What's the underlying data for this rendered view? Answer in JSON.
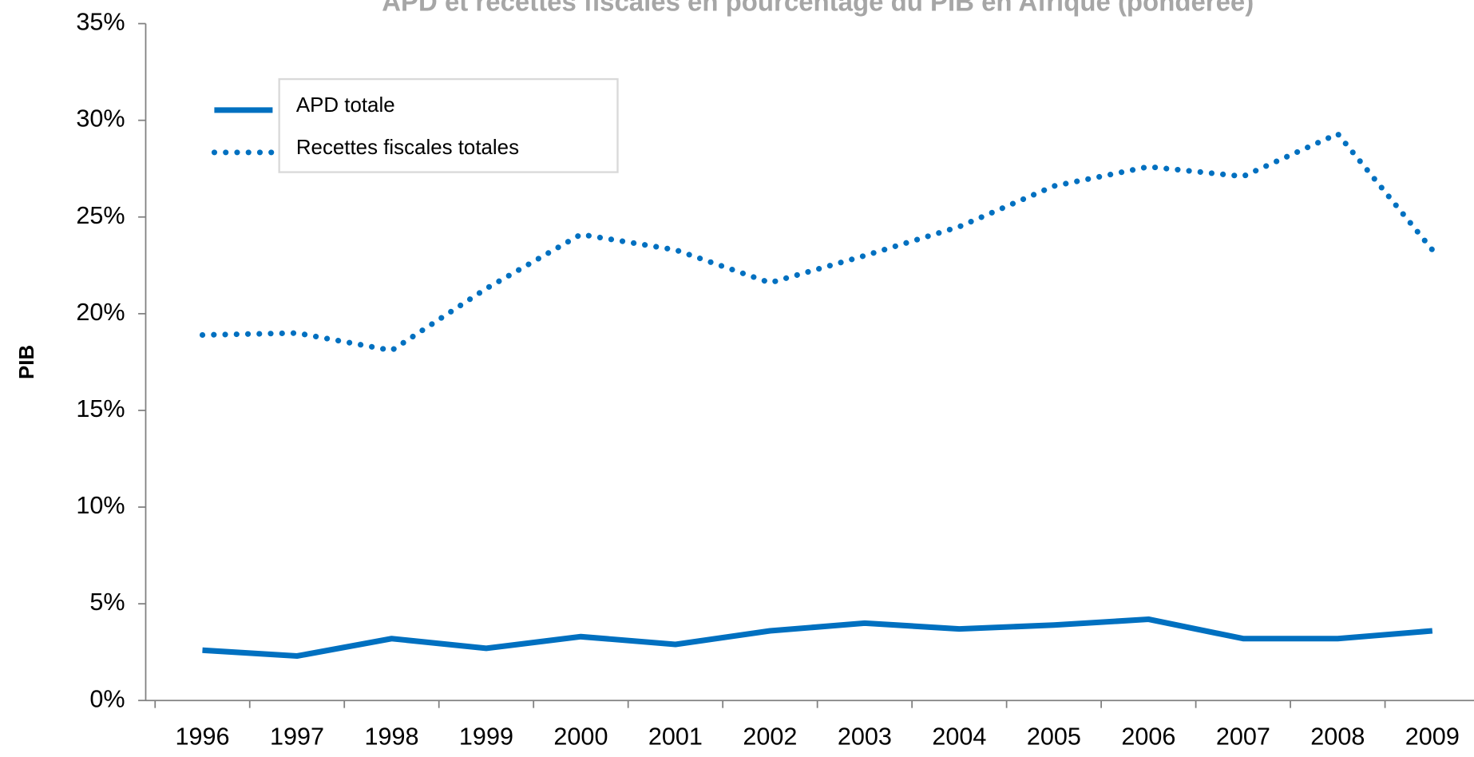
{
  "chart_data": {
    "type": "line",
    "title": "APD et recettes fiscales en pourcentage du PIB en Afrique (pondérée)",
    "y_label": "PIB",
    "categories": [
      "1996",
      "1997",
      "1998",
      "1999",
      "2000",
      "2001",
      "2002",
      "2003",
      "2004",
      "2005",
      "2006",
      "2007",
      "2008",
      "2009"
    ],
    "series": [
      {
        "name": "APD totale",
        "color": "#0070c0",
        "style": "solid",
        "values": [
          2.6,
          2.3,
          3.2,
          2.7,
          3.3,
          2.9,
          3.6,
          4.0,
          3.7,
          3.9,
          4.2,
          3.2,
          3.2,
          3.6
        ]
      },
      {
        "name": "Recettes fiscales totales",
        "color": "#0070c0",
        "style": "dotted",
        "values": [
          18.9,
          19.0,
          18.1,
          21.3,
          24.1,
          23.3,
          21.6,
          23.0,
          24.5,
          26.6,
          27.6,
          27.1,
          29.3,
          23.3
        ]
      }
    ],
    "ylim": [
      0,
      35
    ],
    "yticks": [
      {
        "value": 0,
        "label": "0%"
      },
      {
        "value": 5,
        "label": "5%"
      },
      {
        "value": 10,
        "label": "10%"
      },
      {
        "value": 15,
        "label": "15%"
      },
      {
        "value": 20,
        "label": "20%"
      },
      {
        "value": 25,
        "label": "25%"
      },
      {
        "value": 30,
        "label": "30%"
      },
      {
        "value": 35,
        "label": "35%"
      }
    ],
    "grid": false,
    "legend": "top-left"
  }
}
